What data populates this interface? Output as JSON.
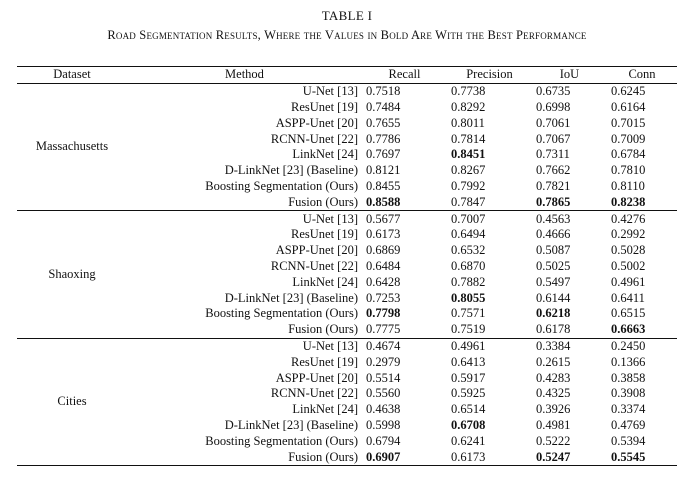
{
  "table_label": "TABLE I",
  "caption": "Road Segmentation Results, Where the Values in Bold Are With the Best Performance",
  "headers": [
    "Dataset",
    "Method",
    "Recall",
    "Precision",
    "IoU",
    "Conn"
  ],
  "groups": [
    {
      "dataset": "Massachusetts",
      "rows": [
        {
          "method": "U-Net [13]",
          "recall": "0.7518",
          "precision": "0.7738",
          "iou": "0.6735",
          "conn": "0.6245",
          "bold": []
        },
        {
          "method": "ResUnet [19]",
          "recall": "0.7484",
          "precision": "0.8292",
          "iou": "0.6998",
          "conn": "0.6164",
          "bold": []
        },
        {
          "method": "ASPP-Unet [20]",
          "recall": "0.7655",
          "precision": "0.8011",
          "iou": "0.7061",
          "conn": "0.7015",
          "bold": []
        },
        {
          "method": "RCNN-Unet [22]",
          "recall": "0.7786",
          "precision": "0.7814",
          "iou": "0.7067",
          "conn": "0.7009",
          "bold": []
        },
        {
          "method": "LinkNet [24]",
          "recall": "0.7697",
          "precision": "0.8451",
          "iou": "0.7311",
          "conn": "0.6784",
          "bold": [
            "precision"
          ]
        },
        {
          "method": "D-LinkNet [23] (Baseline)",
          "recall": "0.8121",
          "precision": "0.8267",
          "iou": "0.7662",
          "conn": "0.7810",
          "bold": []
        },
        {
          "method": "Boosting Segmentation (Ours)",
          "recall": "0.8455",
          "precision": "0.7992",
          "iou": "0.7821",
          "conn": "0.8110",
          "bold": []
        },
        {
          "method": "Fusion (Ours)",
          "recall": "0.8588",
          "precision": "0.7847",
          "iou": "0.7865",
          "conn": "0.8238",
          "bold": [
            "recall",
            "iou",
            "conn"
          ]
        }
      ]
    },
    {
      "dataset": "Shaoxing",
      "rows": [
        {
          "method": "U-Net [13]",
          "recall": "0.5677",
          "precision": "0.7007",
          "iou": "0.4563",
          "conn": "0.4276",
          "bold": []
        },
        {
          "method": "ResUnet [19]",
          "recall": "0.6173",
          "precision": "0.6494",
          "iou": "0.4666",
          "conn": "0.2992",
          "bold": []
        },
        {
          "method": "ASPP-Unet [20]",
          "recall": "0.6869",
          "precision": "0.6532",
          "iou": "0.5087",
          "conn": "0.5028",
          "bold": []
        },
        {
          "method": "RCNN-Unet [22]",
          "recall": "0.6484",
          "precision": "0.6870",
          "iou": "0.5025",
          "conn": "0.5002",
          "bold": []
        },
        {
          "method": "LinkNet [24]",
          "recall": "0.6428",
          "precision": "0.7882",
          "iou": "0.5497",
          "conn": "0.4961",
          "bold": []
        },
        {
          "method": "D-LinkNet [23] (Baseline)",
          "recall": "0.7253",
          "precision": "0.8055",
          "iou": "0.6144",
          "conn": "0.6411",
          "bold": [
            "precision"
          ]
        },
        {
          "method": "Boosting Segmentation (Ours)",
          "recall": "0.7798",
          "precision": "0.7571",
          "iou": "0.6218",
          "conn": "0.6515",
          "bold": [
            "recall",
            "iou"
          ]
        },
        {
          "method": "Fusion (Ours)",
          "recall": "0.7775",
          "precision": "0.7519",
          "iou": "0.6178",
          "conn": "0.6663",
          "bold": [
            "conn"
          ]
        }
      ]
    },
    {
      "dataset": "Cities",
      "rows": [
        {
          "method": "U-Net [13]",
          "recall": "0.4674",
          "precision": "0.4961",
          "iou": "0.3384",
          "conn": "0.2450",
          "bold": []
        },
        {
          "method": "ResUnet [19]",
          "recall": "0.2979",
          "precision": "0.6413",
          "iou": "0.2615",
          "conn": "0.1366",
          "bold": []
        },
        {
          "method": "ASPP-Unet [20]",
          "recall": "0.5514",
          "precision": "0.5917",
          "iou": "0.4283",
          "conn": "0.3858",
          "bold": []
        },
        {
          "method": "RCNN-Unet [22]",
          "recall": "0.5560",
          "precision": "0.5925",
          "iou": "0.4325",
          "conn": "0.3908",
          "bold": []
        },
        {
          "method": "LinkNet [24]",
          "recall": "0.4638",
          "precision": "0.6514",
          "iou": "0.3926",
          "conn": "0.3374",
          "bold": []
        },
        {
          "method": "D-LinkNet [23] (Baseline)",
          "recall": "0.5998",
          "precision": "0.6708",
          "iou": "0.4981",
          "conn": "0.4769",
          "bold": [
            "precision"
          ]
        },
        {
          "method": "Boosting Segmentation (Ours)",
          "recall": "0.6794",
          "precision": "0.6241",
          "iou": "0.5222",
          "conn": "0.5394",
          "bold": []
        },
        {
          "method": "Fusion (Ours)",
          "recall": "0.6907",
          "precision": "0.6173",
          "iou": "0.5247",
          "conn": "0.5545",
          "bold": [
            "recall",
            "iou",
            "conn"
          ]
        }
      ]
    }
  ]
}
